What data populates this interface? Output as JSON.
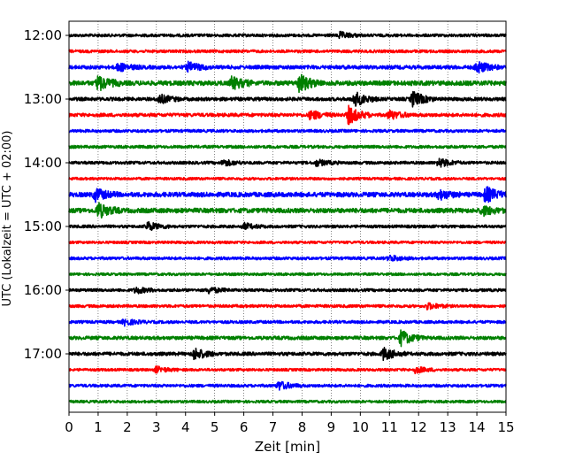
{
  "chart_data": {
    "type": "line",
    "subtype": "helicorder",
    "xlabel": "Zeit  [min]",
    "ylabel": "UTC (Lokalzeit = UTC + 02:00)",
    "xlim": [
      0,
      15
    ],
    "x_ticks": [
      "0",
      "1",
      "2",
      "3",
      "4",
      "5",
      "6",
      "7",
      "8",
      "9",
      "10",
      "11",
      "12",
      "13",
      "14",
      "15"
    ],
    "y_tick_labels": [
      "12:00",
      "13:00",
      "14:00",
      "15:00",
      "16:00",
      "17:00"
    ],
    "grid": "vertical dotted lines at each minute",
    "trace_colors": [
      "#000000",
      "#ff0000",
      "#0000ff",
      "#008000"
    ],
    "traces": [
      {
        "start": "12:00",
        "amplitude": 1.0,
        "events": [
          {
            "t": 9.3,
            "a": 2
          }
        ]
      },
      {
        "start": "12:15",
        "amplitude": 1.0,
        "events": []
      },
      {
        "start": "12:30",
        "amplitude": 1.3,
        "events": [
          {
            "t": 1.7,
            "a": 2.5
          },
          {
            "t": 4.1,
            "a": 3
          },
          {
            "t": 14.0,
            "a": 4
          }
        ]
      },
      {
        "start": "12:45",
        "amplitude": 1.6,
        "events": [
          {
            "t": 1.0,
            "a": 5
          },
          {
            "t": 5.6,
            "a": 4
          },
          {
            "t": 7.9,
            "a": 6
          }
        ]
      },
      {
        "start": "13:00",
        "amplitude": 1.2,
        "events": [
          {
            "t": 3.1,
            "a": 3
          },
          {
            "t": 9.8,
            "a": 5
          },
          {
            "t": 11.8,
            "a": 5
          }
        ]
      },
      {
        "start": "13:15",
        "amplitude": 1.2,
        "events": [
          {
            "t": 8.3,
            "a": 3
          },
          {
            "t": 9.6,
            "a": 6
          },
          {
            "t": 11.0,
            "a": 3
          }
        ]
      },
      {
        "start": "13:30",
        "amplitude": 1.0,
        "events": []
      },
      {
        "start": "13:45",
        "amplitude": 1.0,
        "events": []
      },
      {
        "start": "14:00",
        "amplitude": 1.0,
        "events": [
          {
            "t": 5.3,
            "a": 2
          },
          {
            "t": 8.5,
            "a": 2
          },
          {
            "t": 12.7,
            "a": 3
          }
        ]
      },
      {
        "start": "14:15",
        "amplitude": 0.9,
        "events": []
      },
      {
        "start": "14:30",
        "amplitude": 1.6,
        "events": [
          {
            "t": 0.9,
            "a": 4
          },
          {
            "t": 12.7,
            "a": 3
          },
          {
            "t": 14.3,
            "a": 5
          }
        ]
      },
      {
        "start": "14:45",
        "amplitude": 1.6,
        "events": [
          {
            "t": 1.0,
            "a": 5
          },
          {
            "t": 14.2,
            "a": 3
          }
        ]
      },
      {
        "start": "15:00",
        "amplitude": 1.0,
        "events": [
          {
            "t": 2.7,
            "a": 3
          },
          {
            "t": 6.0,
            "a": 2
          }
        ]
      },
      {
        "start": "15:15",
        "amplitude": 0.9,
        "events": []
      },
      {
        "start": "15:30",
        "amplitude": 1.0,
        "events": [
          {
            "t": 11.0,
            "a": 2
          }
        ]
      },
      {
        "start": "15:45",
        "amplitude": 0.9,
        "events": []
      },
      {
        "start": "16:00",
        "amplitude": 1.0,
        "events": [
          {
            "t": 2.3,
            "a": 2
          },
          {
            "t": 4.8,
            "a": 2
          }
        ]
      },
      {
        "start": "16:15",
        "amplitude": 1.0,
        "events": [
          {
            "t": 12.3,
            "a": 2
          }
        ]
      },
      {
        "start": "16:30",
        "amplitude": 1.0,
        "events": [
          {
            "t": 1.9,
            "a": 2
          }
        ]
      },
      {
        "start": "16:45",
        "amplitude": 1.2,
        "events": [
          {
            "t": 11.4,
            "a": 5
          }
        ]
      },
      {
        "start": "17:00",
        "amplitude": 1.2,
        "events": [
          {
            "t": 4.3,
            "a": 4
          },
          {
            "t": 10.8,
            "a": 4
          }
        ]
      },
      {
        "start": "17:15",
        "amplitude": 0.9,
        "events": [
          {
            "t": 3.0,
            "a": 2
          },
          {
            "t": 11.9,
            "a": 2
          }
        ]
      },
      {
        "start": "17:30",
        "amplitude": 1.0,
        "events": [
          {
            "t": 7.2,
            "a": 3
          }
        ]
      },
      {
        "start": "17:45",
        "amplitude": 0.9,
        "events": []
      }
    ]
  }
}
